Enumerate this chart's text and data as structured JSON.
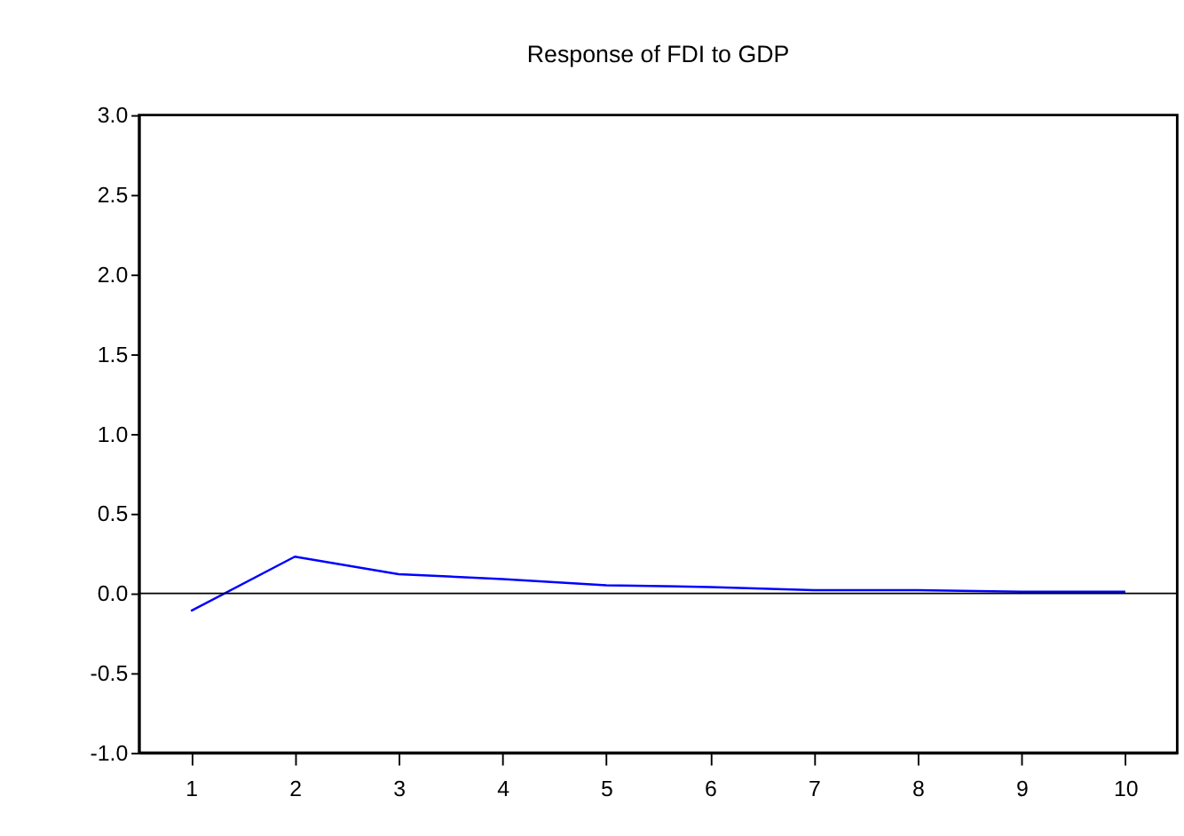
{
  "chart_data": {
    "type": "line",
    "title": "Response of FDI to GDP",
    "categories": [
      "1",
      "2",
      "3",
      "4",
      "5",
      "6",
      "7",
      "8",
      "9",
      "10"
    ],
    "series": [
      {
        "color": "#0000ff",
        "values": [
          -0.11,
          0.23,
          0.12,
          0.09,
          0.05,
          0.04,
          0.02,
          0.02,
          0.01,
          0.01
        ]
      }
    ],
    "ylim": [
      -1.0,
      3.0
    ],
    "yticks": [
      {
        "value": -1.0,
        "label": "-1.0"
      },
      {
        "value": -0.5,
        "label": "-0.5"
      },
      {
        "value": 0,
        "label": "0.0"
      },
      {
        "value": 0.5,
        "label": "0.5"
      },
      {
        "value": 1.0,
        "label": "1.0"
      },
      {
        "value": 1.5,
        "label": "1.5"
      },
      {
        "value": 2.0,
        "label": "2.0"
      },
      {
        "value": 2.5,
        "label": "2.5"
      },
      {
        "value": 3.0,
        "label": "3.0"
      }
    ],
    "ref_lines": [
      {
        "axis": "y",
        "value": 0,
        "color": "#000000"
      }
    ],
    "grid": false,
    "marker": "none",
    "line_style": "solid"
  }
}
